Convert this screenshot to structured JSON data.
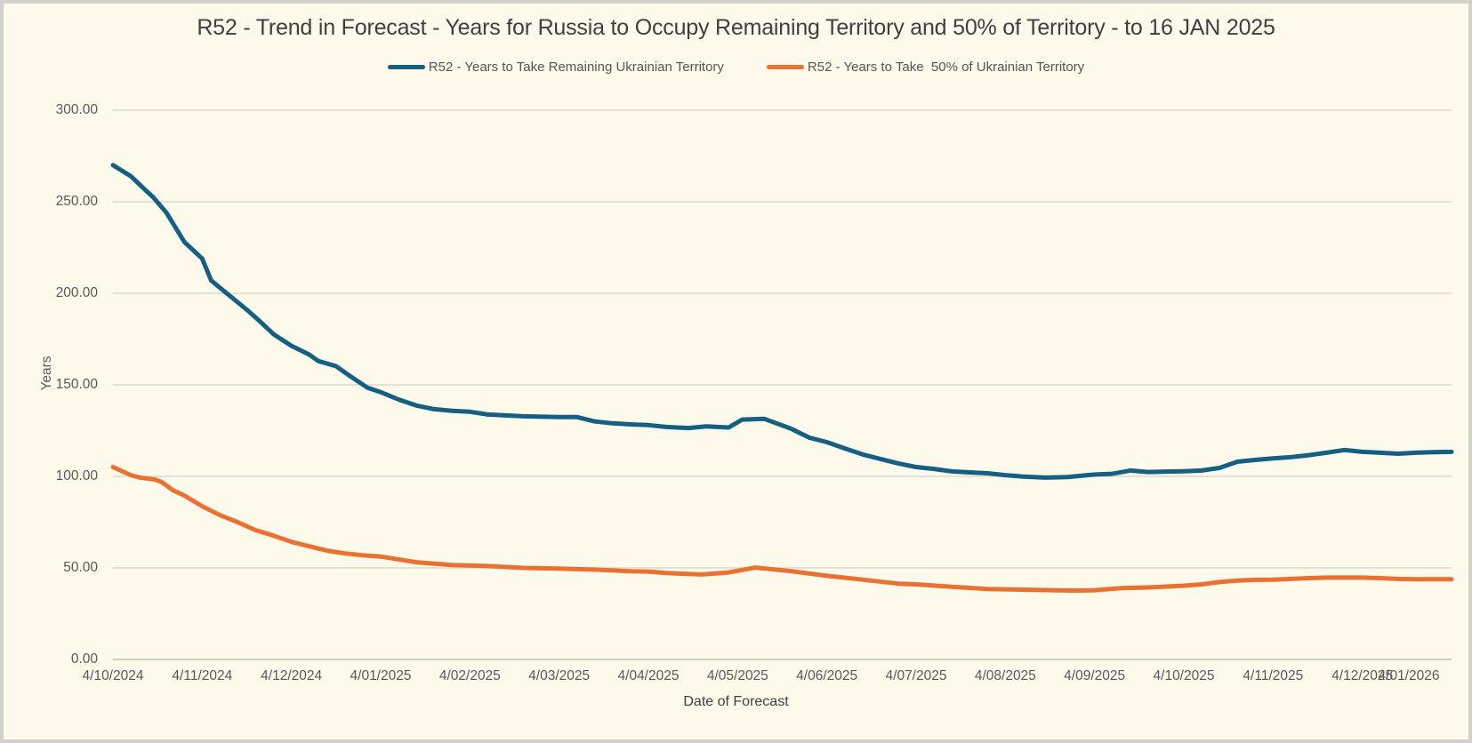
{
  "chart_data": {
    "type": "line",
    "title": "R52 - Trend in Forecast - Years for Russia to Occupy Remaining Territory and 50% of Territory - to 16 JAN 2025",
    "xlabel": "Date of Forecast",
    "ylabel": "Years",
    "ylim": [
      0,
      300
    ],
    "ytick_step": 50,
    "ytick_decimals": 2,
    "grid": "horizontal",
    "legend_position": "top",
    "x_tick_labels": [
      "4/10/2024",
      "4/11/2024",
      "4/12/2024",
      "4/01/2025",
      "4/02/2025",
      "4/03/2025",
      "4/04/2025",
      "4/05/2025",
      "4/06/2025",
      "4/07/2025",
      "4/08/2025",
      "4/09/2025",
      "4/10/2025",
      "4/11/2025",
      "4/12/2025",
      "4/01/2026"
    ],
    "points_x_unit": "month index, 0 = 4/10/2024 tick, 15 = 4/01/2026 tick",
    "series": [
      {
        "name": "R52 - Years to Take Remaining Ukrainian Territory",
        "color": "#156082",
        "points": [
          [
            0,
            270
          ],
          [
            0.2,
            264
          ],
          [
            0.35,
            257
          ],
          [
            0.45,
            252.5
          ],
          [
            0.6,
            244
          ],
          [
            0.7,
            236
          ],
          [
            0.8,
            228
          ],
          [
            1,
            219
          ],
          [
            1.1,
            207
          ],
          [
            1.3,
            199
          ],
          [
            1.5,
            191
          ],
          [
            1.65,
            184.5
          ],
          [
            1.8,
            177.6
          ],
          [
            2,
            171.3
          ],
          [
            2.2,
            166.5
          ],
          [
            2.3,
            163
          ],
          [
            2.5,
            160.2
          ],
          [
            2.65,
            155
          ],
          [
            2.85,
            148.5
          ],
          [
            3,
            146
          ],
          [
            3.2,
            142
          ],
          [
            3.4,
            138.7
          ],
          [
            3.6,
            136.7
          ],
          [
            3.8,
            135.8
          ],
          [
            4,
            135.3
          ],
          [
            4.2,
            133.8
          ],
          [
            4.6,
            132.8
          ],
          [
            5,
            132.4
          ],
          [
            5.2,
            132.4
          ],
          [
            5.4,
            130
          ],
          [
            5.6,
            129
          ],
          [
            5.8,
            128.4
          ],
          [
            6,
            128
          ],
          [
            6.2,
            127
          ],
          [
            6.45,
            126.4
          ],
          [
            6.65,
            127.3
          ],
          [
            6.9,
            126.7
          ],
          [
            7.05,
            131
          ],
          [
            7.3,
            131.4
          ],
          [
            7.6,
            126
          ],
          [
            7.8,
            121.2
          ],
          [
            8,
            118.7
          ],
          [
            8.2,
            115.3
          ],
          [
            8.4,
            112
          ],
          [
            8.6,
            109.5
          ],
          [
            8.8,
            107.1
          ],
          [
            9,
            105.1
          ],
          [
            9.2,
            104.1
          ],
          [
            9.4,
            102.7
          ],
          [
            9.6,
            102.2
          ],
          [
            9.8,
            101.7
          ],
          [
            10,
            100.7
          ],
          [
            10.2,
            99.9
          ],
          [
            10.45,
            99.3
          ],
          [
            10.7,
            99.6
          ],
          [
            11,
            101
          ],
          [
            11.2,
            101.4
          ],
          [
            11.4,
            103.2
          ],
          [
            11.6,
            102.4
          ],
          [
            11.8,
            102.6
          ],
          [
            12,
            102.8
          ],
          [
            12.2,
            103.2
          ],
          [
            12.4,
            104.6
          ],
          [
            12.6,
            108
          ],
          [
            12.8,
            109
          ],
          [
            13,
            109.8
          ],
          [
            13.2,
            110.5
          ],
          [
            13.4,
            111.6
          ],
          [
            13.6,
            112.9
          ],
          [
            13.8,
            114.4
          ],
          [
            14,
            113.4
          ],
          [
            14.2,
            112.9
          ],
          [
            14.4,
            112.4
          ],
          [
            14.6,
            112.9
          ],
          [
            14.8,
            113.2
          ],
          [
            15,
            113.4
          ]
        ]
      },
      {
        "name": "R52 - Years to Take  50% of Ukrainian Territory",
        "color": "#E97132",
        "points": [
          [
            0,
            105.1
          ],
          [
            0.2,
            100.7
          ],
          [
            0.3,
            99.3
          ],
          [
            0.47,
            98.3
          ],
          [
            0.55,
            96.8
          ],
          [
            0.67,
            92.5
          ],
          [
            0.8,
            89.5
          ],
          [
            1,
            83.7
          ],
          [
            1.2,
            78.8
          ],
          [
            1.4,
            74.9
          ],
          [
            1.6,
            70.6
          ],
          [
            1.8,
            67.6
          ],
          [
            2,
            64.2
          ],
          [
            2.2,
            61.8
          ],
          [
            2.4,
            59.4
          ],
          [
            2.6,
            57.9
          ],
          [
            2.8,
            56.9
          ],
          [
            3,
            56.2
          ],
          [
            3.4,
            53.1
          ],
          [
            3.8,
            51.6
          ],
          [
            4,
            51.3
          ],
          [
            4.2,
            51
          ],
          [
            4.6,
            50
          ],
          [
            5,
            49.6
          ],
          [
            5.4,
            49.1
          ],
          [
            5.8,
            48.2
          ],
          [
            6,
            48
          ],
          [
            6.2,
            47.2
          ],
          [
            6.6,
            46.4
          ],
          [
            6.9,
            47.5
          ],
          [
            7.2,
            50.2
          ],
          [
            7.6,
            48.2
          ],
          [
            8,
            45.7
          ],
          [
            8.4,
            43.6
          ],
          [
            8.8,
            41.4
          ],
          [
            9,
            41
          ],
          [
            9.4,
            39.7
          ],
          [
            9.8,
            38.5
          ],
          [
            10,
            38.3
          ],
          [
            10.4,
            37.9
          ],
          [
            10.8,
            37.6
          ],
          [
            11,
            37.8
          ],
          [
            11.3,
            39
          ],
          [
            11.6,
            39.3
          ],
          [
            12,
            40.3
          ],
          [
            12.2,
            41
          ],
          [
            12.4,
            42.3
          ],
          [
            12.6,
            43.1
          ],
          [
            12.8,
            43.5
          ],
          [
            13,
            43.6
          ],
          [
            13.4,
            44.4
          ],
          [
            13.6,
            44.7
          ],
          [
            14,
            44.7
          ],
          [
            14.2,
            44.4
          ],
          [
            14.4,
            44
          ],
          [
            14.6,
            43.8
          ],
          [
            15,
            43.8
          ]
        ]
      }
    ]
  }
}
